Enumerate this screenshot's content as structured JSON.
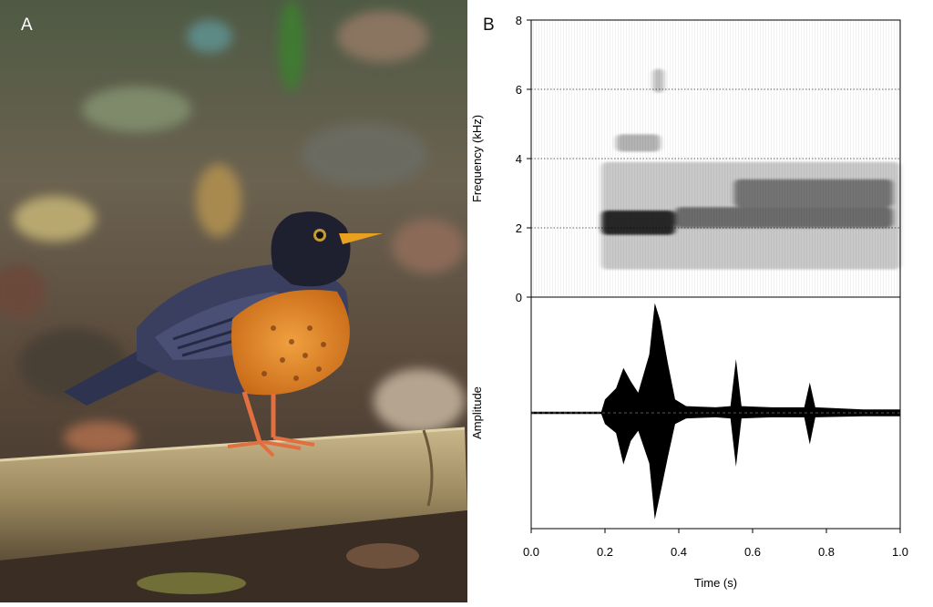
{
  "panels": {
    "a": {
      "label": "A"
    },
    "b": {
      "label": "B"
    }
  },
  "chart_data": [
    {
      "type": "heatmap",
      "description_kind": "spectrogram",
      "xlabel": "",
      "ylabel": "Frequency (kHz)",
      "xlim": [
        0,
        1.0
      ],
      "ylim": [
        0,
        8
      ],
      "yticks": [
        "0",
        "2",
        "4",
        "6",
        "8"
      ],
      "grid": "dotted horizontal lines at 2, 4, 6",
      "energy_bands": [
        {
          "t": [
            0.19,
            1.0
          ],
          "f": [
            0.8,
            3.9
          ],
          "level": 0.25
        },
        {
          "t": [
            0.19,
            0.39
          ],
          "f": [
            1.8,
            2.5
          ],
          "level": 0.95
        },
        {
          "t": [
            0.39,
            0.98
          ],
          "f": [
            2.0,
            2.6
          ],
          "level": 0.55
        },
        {
          "t": [
            0.55,
            0.98
          ],
          "f": [
            2.6,
            3.4
          ],
          "level": 0.5
        },
        {
          "t": [
            0.23,
            0.35
          ],
          "f": [
            4.2,
            4.7
          ],
          "level": 0.35
        },
        {
          "t": [
            0.33,
            0.36
          ],
          "f": [
            5.9,
            6.6
          ],
          "level": 0.3
        }
      ]
    },
    {
      "type": "line",
      "description_kind": "waveform",
      "xlabel": "Time (s)",
      "ylabel": "Amplitude",
      "xlim": [
        0,
        1.0
      ],
      "xticks": [
        "0.0",
        "0.2",
        "0.4",
        "0.6",
        "0.8",
        "1.0"
      ],
      "envelope": {
        "t": [
          0.0,
          0.19,
          0.2,
          0.23,
          0.25,
          0.27,
          0.29,
          0.32,
          0.335,
          0.35,
          0.37,
          0.39,
          0.42,
          0.5,
          0.54,
          0.555,
          0.57,
          0.65,
          0.74,
          0.755,
          0.77,
          0.9,
          1.0
        ],
        "pos": [
          0.01,
          0.01,
          0.12,
          0.22,
          0.4,
          0.28,
          0.18,
          0.52,
          0.98,
          0.82,
          0.45,
          0.12,
          0.06,
          0.05,
          0.06,
          0.48,
          0.06,
          0.05,
          0.05,
          0.27,
          0.05,
          0.03,
          0.03
        ],
        "neg": [
          0.01,
          0.01,
          0.1,
          0.18,
          0.46,
          0.25,
          0.16,
          0.45,
          0.95,
          0.72,
          0.4,
          0.1,
          0.05,
          0.04,
          0.05,
          0.48,
          0.05,
          0.04,
          0.04,
          0.28,
          0.04,
          0.03,
          0.03
        ]
      }
    }
  ]
}
